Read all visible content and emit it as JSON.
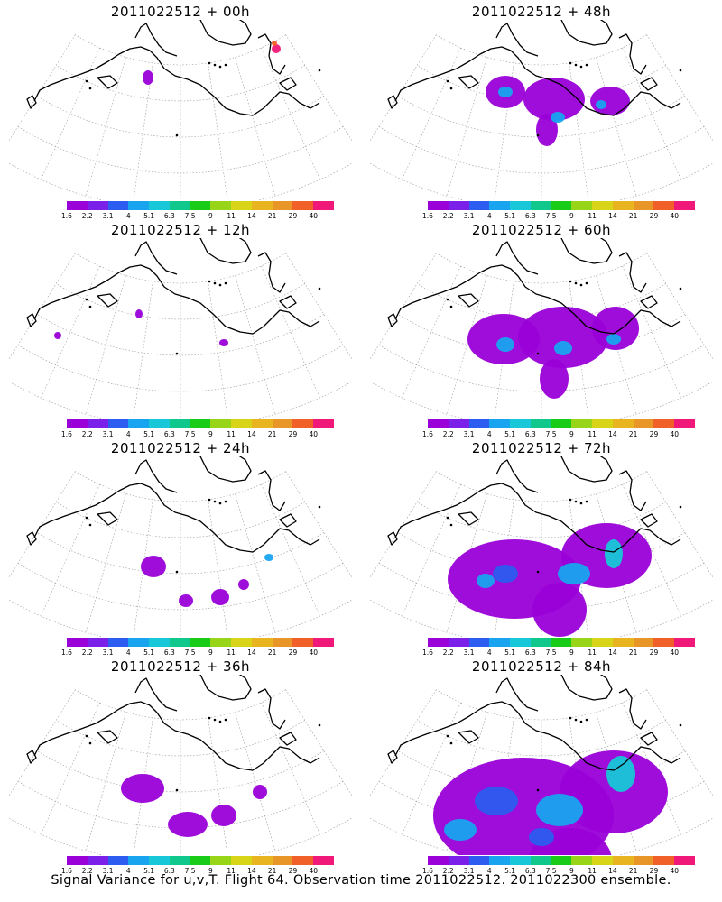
{
  "panels": [
    {
      "title": "2011022512 + 00h",
      "level": 0
    },
    {
      "title": "2011022512 + 48h",
      "level": 4
    },
    {
      "title": "2011022512 + 12h",
      "level": 1
    },
    {
      "title": "2011022512 + 60h",
      "level": 5
    },
    {
      "title": "2011022512 + 24h",
      "level": 2
    },
    {
      "title": "2011022512 + 72h",
      "level": 6
    },
    {
      "title": "2011022512 + 36h",
      "level": 3
    },
    {
      "title": "2011022512 + 84h",
      "level": 7
    }
  ],
  "colorbar": {
    "colors": [
      "#9a00d8",
      "#7a20e8",
      "#2c5cf0",
      "#19a4f0",
      "#18c8d8",
      "#10c88c",
      "#18cc18",
      "#98d418",
      "#d8d418",
      "#e8b420",
      "#e89628",
      "#f06028",
      "#f01878"
    ],
    "labels": [
      "1.6",
      "2.2",
      "3.1",
      "4",
      "5.1",
      "6.3",
      "7.5",
      "9",
      "11",
      "14",
      "21",
      "29",
      "40"
    ]
  },
  "footer": "Signal Variance for u,v,T. Flight 64. Observation time 2011022512. 2011022300 ensemble."
}
